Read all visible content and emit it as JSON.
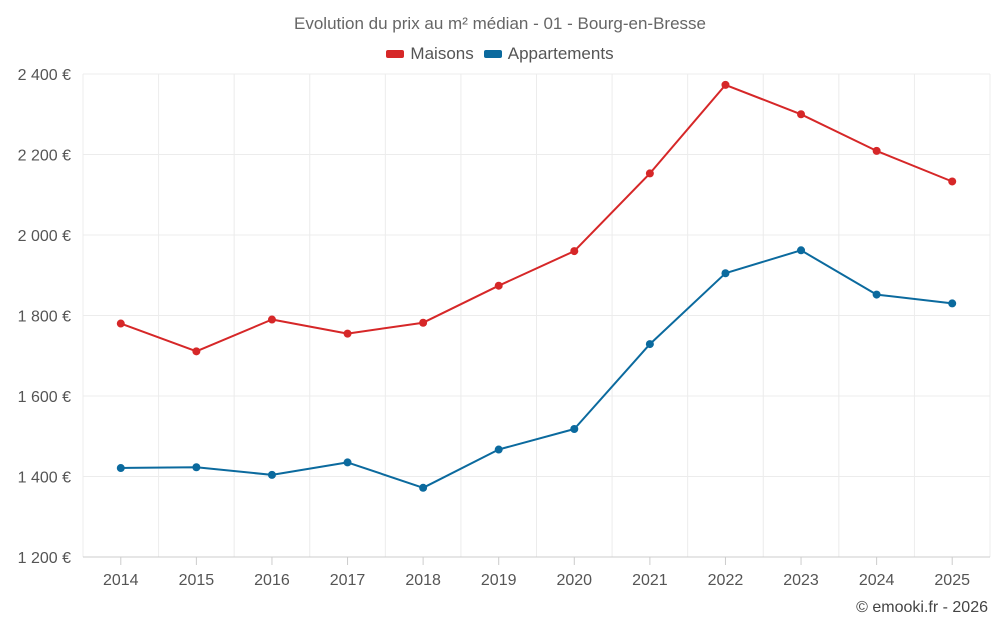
{
  "chart_data": {
    "type": "line",
    "title": "Evolution du prix au m² médian - 01 - Bourg-en-Bresse",
    "categories": [
      "2014",
      "2015",
      "2016",
      "2017",
      "2018",
      "2019",
      "2020",
      "2021",
      "2022",
      "2023",
      "2024",
      "2025"
    ],
    "series": [
      {
        "name": "Maisons",
        "color": "#d62728",
        "values": [
          1780,
          1711,
          1790,
          1755,
          1782,
          1874,
          1960,
          2153,
          2373,
          2300,
          2209,
          2133
        ]
      },
      {
        "name": "Appartements",
        "color": "#0b6a9e",
        "values": [
          1421,
          1423,
          1404,
          1435,
          1372,
          1467,
          1518,
          1729,
          1905,
          1962,
          1852,
          1830
        ]
      }
    ],
    "yticks": [
      1200,
      1400,
      1600,
      1800,
      2000,
      2200,
      2400
    ],
    "ytick_labels": [
      "1 200 €",
      "1 400 €",
      "1 600 €",
      "1 800 €",
      "2 000 €",
      "2 200 €",
      "2 400 €"
    ],
    "ylim": [
      1200,
      2400
    ],
    "xlabel": "",
    "ylabel": "",
    "grid": true,
    "legend_position": "top-center"
  },
  "credit": "© emooki.fr - 2026"
}
